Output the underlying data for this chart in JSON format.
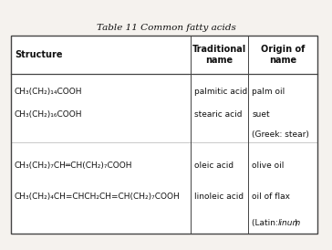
{
  "title": "Table 11 Common fatty acids",
  "background_color": "#f5f2ee",
  "table_bg": "#ffffff",
  "border_color": "#444444",
  "header_row": [
    "Structure",
    "Traditional\nname",
    "Origin of\nname"
  ],
  "col1_lines": [
    "CH₃(CH₂)₁₄COOH",
    "CH₃(CH₂)₁₆COOH",
    "",
    "CH₃(CH₂)₇CH═CH(CH₂)₇COOH",
    "CH₃(CH₂)₄CH=CHCH₂CH=CH(CH₂)₇COOH"
  ],
  "col2_lines": [
    "palmitic acid",
    "stearic acid",
    "",
    "oleic acid",
    "linoleic acid"
  ],
  "col3_lines": [
    "palm oil",
    "suet",
    "(Greek: stear)",
    "olive oil",
    "oil of flax"
  ],
  "col3_italic_line": "(Latin: linum)",
  "title_fontsize": 7.5,
  "header_fontsize": 7,
  "body_fontsize": 6.5
}
